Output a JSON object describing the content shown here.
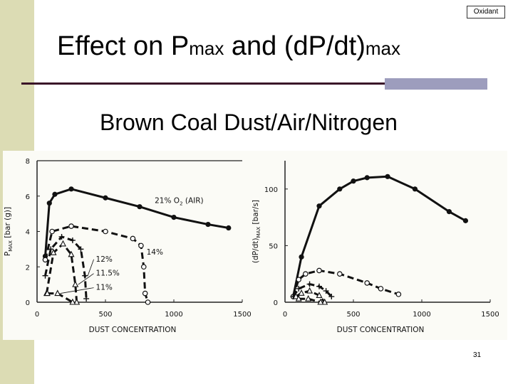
{
  "slide": {
    "tag": "Oxidant",
    "title_main": "Effect on P",
    "title_sub1": "max",
    "title_mid": " and (dP/dt)",
    "title_sub2": "max",
    "subtitle": "Brown Coal Dust/Air/Nitrogen",
    "page_number": "31",
    "colors": {
      "left_bar": "#dcdcb4",
      "rule": "#3a1428",
      "rule_block": "#9d9dbd"
    }
  },
  "chart_data": [
    {
      "type": "line",
      "xlabel": "DUST CONCENTRATION",
      "ylabel_main": "P",
      "ylabel_sub": "MAX",
      "ylabel_unit": " [bar (g)]",
      "xlim": [
        0,
        1500
      ],
      "ylim": [
        0,
        8
      ],
      "xticks": [
        0,
        500,
        1000,
        1500
      ],
      "yticks": [
        0,
        2,
        4,
        6,
        8
      ],
      "grid": false,
      "series": [
        {
          "label_main": "21% O",
          "label_sub": "2",
          "label_tail": " (AIR)",
          "marker": "dot",
          "points": [
            [
              60,
              2.6
            ],
            [
              90,
              5.6
            ],
            [
              130,
              6.1
            ],
            [
              250,
              6.4
            ],
            [
              500,
              5.9
            ],
            [
              750,
              5.4
            ],
            [
              1000,
              4.8
            ],
            [
              1250,
              4.4
            ],
            [
              1400,
              4.2
            ]
          ],
          "label_at": [
            860,
            5.6
          ]
        },
        {
          "label_main": "14%",
          "marker": "circle",
          "points": [
            [
              60,
              2.4
            ],
            [
              110,
              4.0
            ],
            [
              250,
              4.3
            ],
            [
              500,
              4.0
            ],
            [
              700,
              3.6
            ],
            [
              760,
              3.2
            ],
            [
              780,
              2.0
            ],
            [
              790,
              0.5
            ],
            [
              810,
              0
            ]
          ],
          "label_at": [
            800,
            2.7
          ]
        },
        {
          "label_main": "12%",
          "marker": "plus",
          "points": [
            [
              60,
              1.5
            ],
            [
              100,
              3.0
            ],
            [
              180,
              3.7
            ],
            [
              260,
              3.5
            ],
            [
              320,
              3.0
            ],
            [
              350,
              1.5
            ],
            [
              360,
              0.2
            ]
          ],
          "label_at": [
            430,
            2.3
          ]
        },
        {
          "label_main": "11.5%",
          "marker": "triangle",
          "points": [
            [
              70,
              0.5
            ],
            [
              120,
              2.8
            ],
            [
              190,
              3.3
            ],
            [
              250,
              2.7
            ],
            [
              280,
              1.0
            ],
            [
              290,
              0
            ]
          ],
          "label_at": [
            430,
            1.5
          ]
        },
        {
          "label_main": "11%",
          "marker": "triangle",
          "points": [
            [
              75,
              0.5
            ],
            [
              150,
              0.5
            ],
            [
              260,
              0
            ]
          ],
          "label_at": [
            430,
            0.7
          ]
        }
      ]
    },
    {
      "type": "line",
      "xlabel": "DUST CONCENTRATION",
      "ylabel_main": "(dP/dt)",
      "ylabel_sub": "MAX",
      "ylabel_unit": " [bar/s]",
      "xlim": [
        0,
        1500
      ],
      "ylim": [
        0,
        125
      ],
      "xticks": [
        0,
        500,
        1000,
        1500
      ],
      "yticks": [
        0,
        50,
        100
      ],
      "grid": false,
      "series": [
        {
          "marker": "dot",
          "points": [
            [
              60,
              5
            ],
            [
              120,
              40
            ],
            [
              250,
              85
            ],
            [
              400,
              100
            ],
            [
              500,
              107
            ],
            [
              600,
              110
            ],
            [
              750,
              111
            ],
            [
              950,
              100
            ],
            [
              1200,
              80
            ],
            [
              1320,
              72
            ]
          ]
        },
        {
          "marker": "circle",
          "points": [
            [
              60,
              5
            ],
            [
              100,
              20
            ],
            [
              150,
              25
            ],
            [
              250,
              28
            ],
            [
              400,
              25
            ],
            [
              600,
              17
            ],
            [
              700,
              12
            ],
            [
              830,
              7
            ]
          ]
        },
        {
          "marker": "plus",
          "points": [
            [
              60,
              5
            ],
            [
              100,
              12
            ],
            [
              180,
              16
            ],
            [
              250,
              14
            ],
            [
              300,
              10
            ],
            [
              340,
              5
            ]
          ]
        },
        {
          "marker": "triangle",
          "points": [
            [
              80,
              5
            ],
            [
              120,
              8
            ],
            [
              180,
              10
            ],
            [
              250,
              6
            ],
            [
              290,
              0
            ]
          ]
        },
        {
          "marker": "triangle",
          "points": [
            [
              100,
              3
            ],
            [
              170,
              3
            ],
            [
              260,
              0
            ]
          ]
        }
      ]
    }
  ]
}
